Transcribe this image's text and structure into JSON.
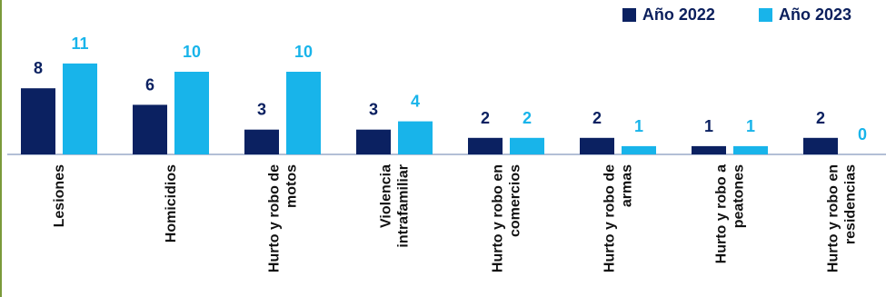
{
  "colors": {
    "y2022": "#0b2161",
    "y2023": "#18b4ea",
    "axis": "#9aaac8",
    "label": "#111111"
  },
  "legend": {
    "item_2022": "Año 2022",
    "item_2023": "Año 2023"
  },
  "chart_data": {
    "type": "bar",
    "title": "",
    "xlabel": "",
    "ylabel": "",
    "ylim": [
      0,
      11
    ],
    "grid": false,
    "legend_position": "top-right",
    "categories": [
      [
        "Lesiones"
      ],
      [
        "Homicidios"
      ],
      [
        "Hurto y robo de",
        "motos"
      ],
      [
        "Violencia",
        "intrafamiliar"
      ],
      [
        "Hurto y robo en",
        "comercios"
      ],
      [
        "Hurto y robo de",
        "armas"
      ],
      [
        "Hurto y robo a",
        "peatones"
      ],
      [
        "Hurto y robo en",
        "residencias"
      ]
    ],
    "series": [
      {
        "name": "Año 2022",
        "values": [
          8,
          6,
          3,
          3,
          2,
          2,
          1,
          2
        ]
      },
      {
        "name": "Año 2023",
        "values": [
          11,
          10,
          10,
          4,
          2,
          1,
          1,
          0
        ]
      }
    ]
  }
}
